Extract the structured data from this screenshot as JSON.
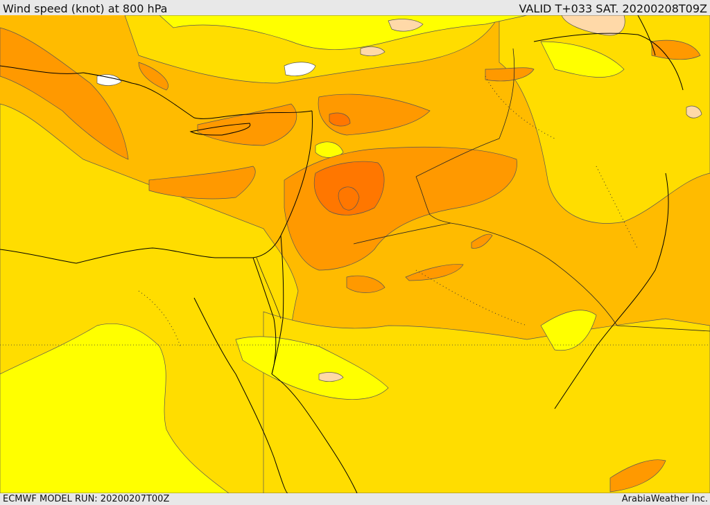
{
  "header": {
    "title": "Wind speed (knot) at 800 hPa",
    "valid": "VALID T+033 SAT. 20200208T09Z"
  },
  "footer": {
    "model_run": "ECMWF MODEL RUN: 20200207T00Z",
    "credit": "ArabiaWeather Inc."
  },
  "colors": {
    "band_10_15": "#ffff00",
    "band_15_20": "#ffdd00",
    "band_20_25": "#ffbb00",
    "band_25_30": "#ff9900",
    "band_30_35": "#ff7700",
    "band_5_10": "#ffd9a8",
    "band_0_5": "#ffffff",
    "coast": "#000000",
    "contour": "#444444"
  }
}
